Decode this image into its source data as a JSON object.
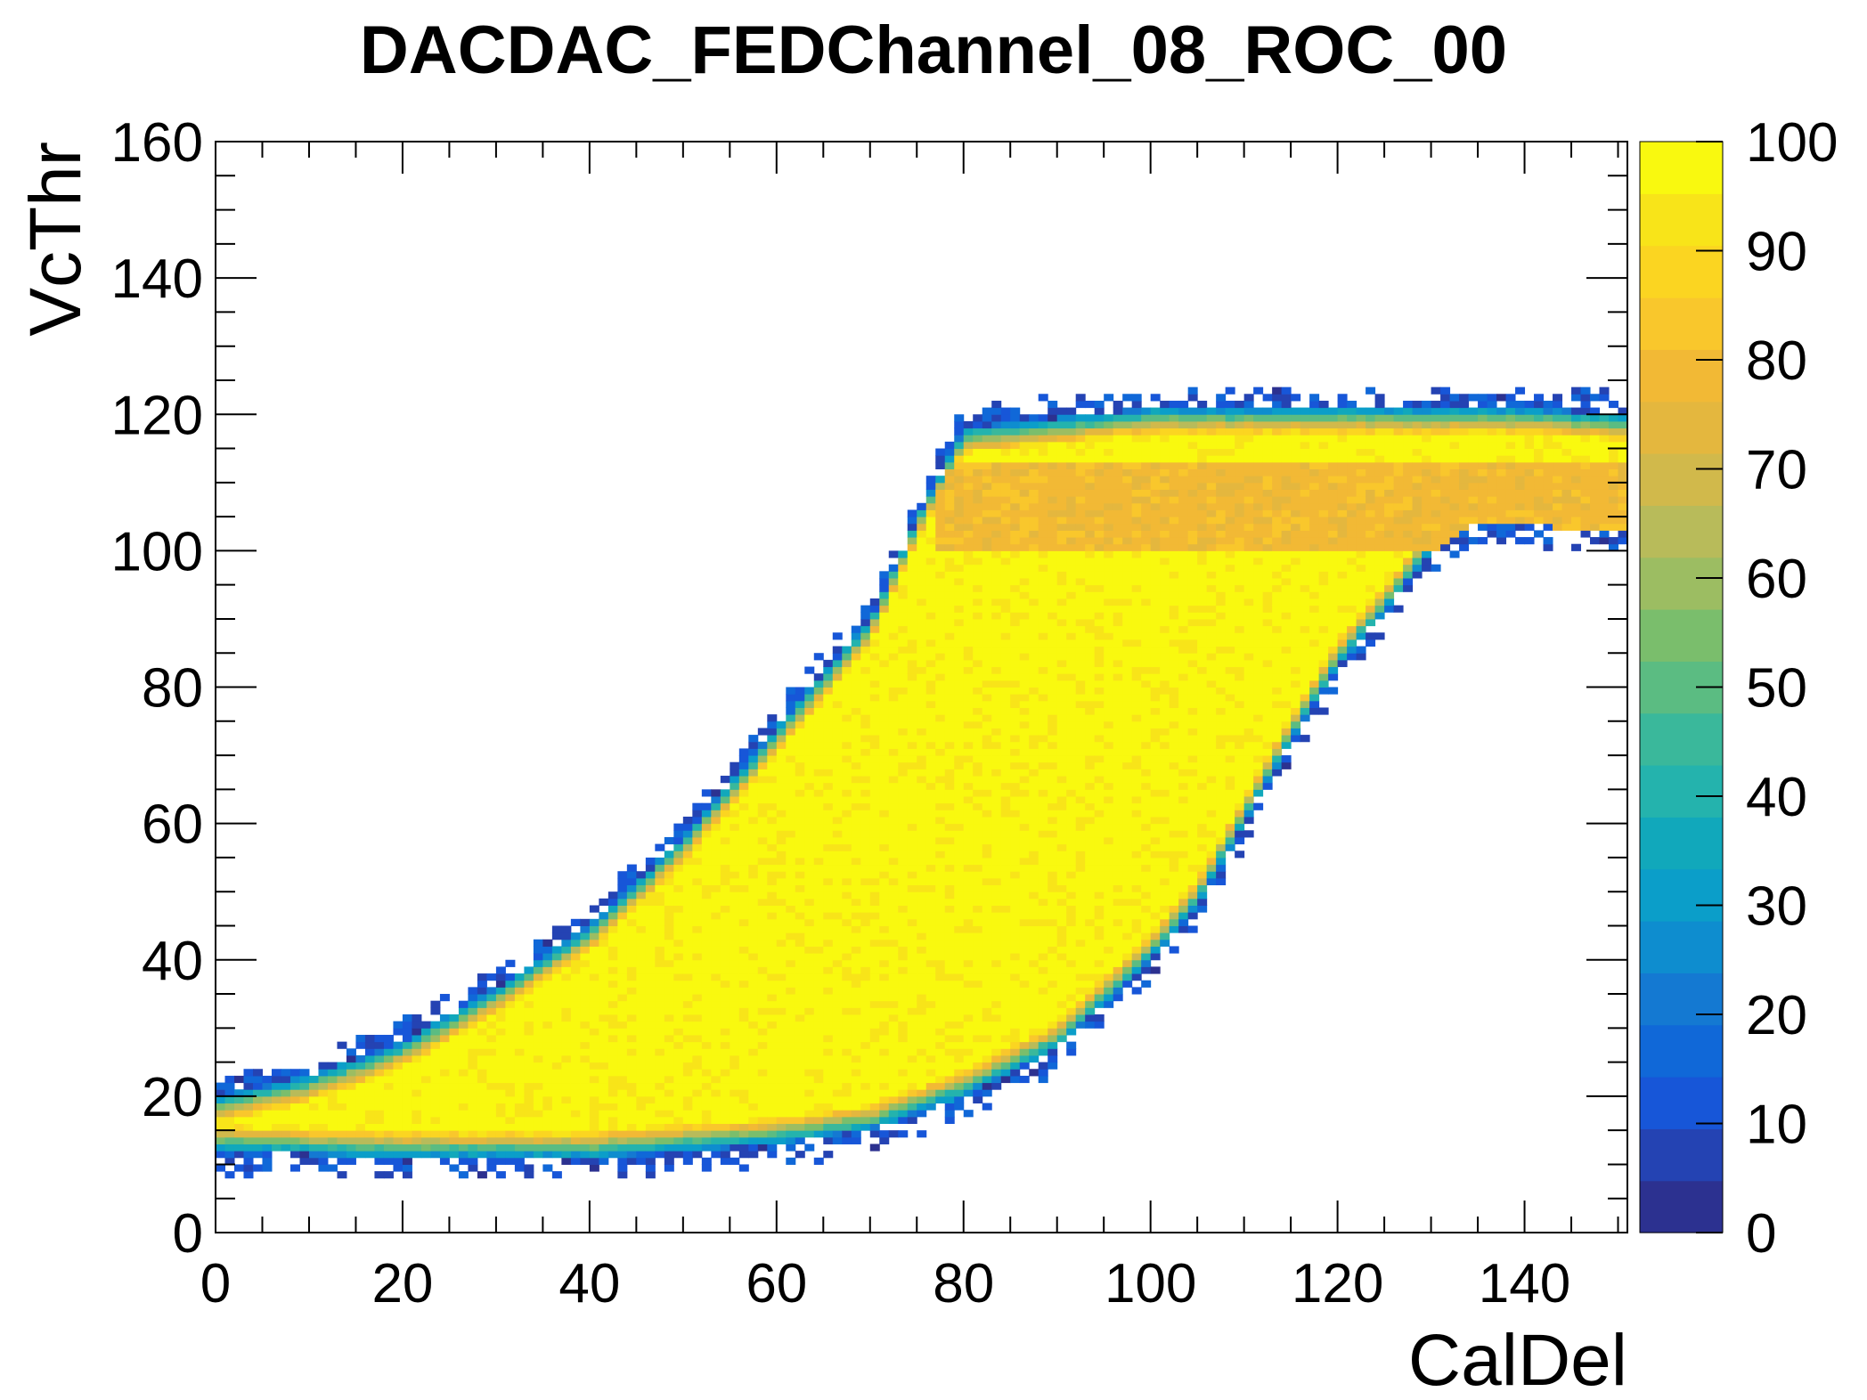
{
  "chart_data": {
    "type": "heatmap",
    "title": "DACDAC_FEDChannel_08_ROC_00",
    "xlabel": "CalDel",
    "ylabel": "VcThr",
    "xlim": [
      0,
      151
    ],
    "ylim": [
      0,
      160
    ],
    "zlim": [
      0,
      100
    ],
    "xticks": [
      "0",
      "20",
      "40",
      "60",
      "80",
      "100",
      "120",
      "140"
    ],
    "yticks": [
      "0",
      "20",
      "40",
      "60",
      "80",
      "100",
      "120",
      "140",
      "160"
    ],
    "zticks": [
      "0",
      "10",
      "20",
      "30",
      "40",
      "50",
      "60",
      "70",
      "80",
      "90",
      "100"
    ],
    "colorbar_position": "right",
    "bin_size": [
      1,
      1
    ],
    "colormap": [
      "#2c3190",
      "#2443b3",
      "#1756d8",
      "#1068d8",
      "#1479d2",
      "#0e8dcf",
      "#0b9ec9",
      "#11a8bb",
      "#24b3ad",
      "#3ab89b",
      "#5bbc82",
      "#7abe6c",
      "#9cbd62",
      "#b8bb5a",
      "#d1b94b",
      "#e4b73e",
      "#f2b935",
      "#f9c72c",
      "#fbd521",
      "#f8e419",
      "#f9f90f"
    ],
    "region": {
      "description_points_lower_edge": [
        [
          0,
          12
        ],
        [
          20,
          11
        ],
        [
          40,
          11
        ],
        [
          60,
          13
        ],
        [
          70,
          15
        ],
        [
          80,
          20
        ],
        [
          90,
          27
        ],
        [
          100,
          40
        ],
        [
          105,
          48
        ],
        [
          110,
          60
        ],
        [
          115,
          72
        ],
        [
          120,
          83
        ],
        [
          125,
          91
        ],
        [
          130,
          100
        ],
        [
          135,
          104
        ],
        [
          151,
          103
        ]
      ],
      "description_points_upper_edge": [
        [
          0,
          20
        ],
        [
          10,
          23
        ],
        [
          20,
          28
        ],
        [
          30,
          36
        ],
        [
          40,
          45
        ],
        [
          50,
          58
        ],
        [
          60,
          74
        ],
        [
          70,
          90
        ],
        [
          75,
          105
        ],
        [
          80,
          118
        ],
        [
          100,
          121
        ],
        [
          140,
          121
        ],
        [
          151,
          120
        ]
      ],
      "plateau_range": [
        100,
        113
      ],
      "plateau_value": 80,
      "core_value": 100
    }
  }
}
